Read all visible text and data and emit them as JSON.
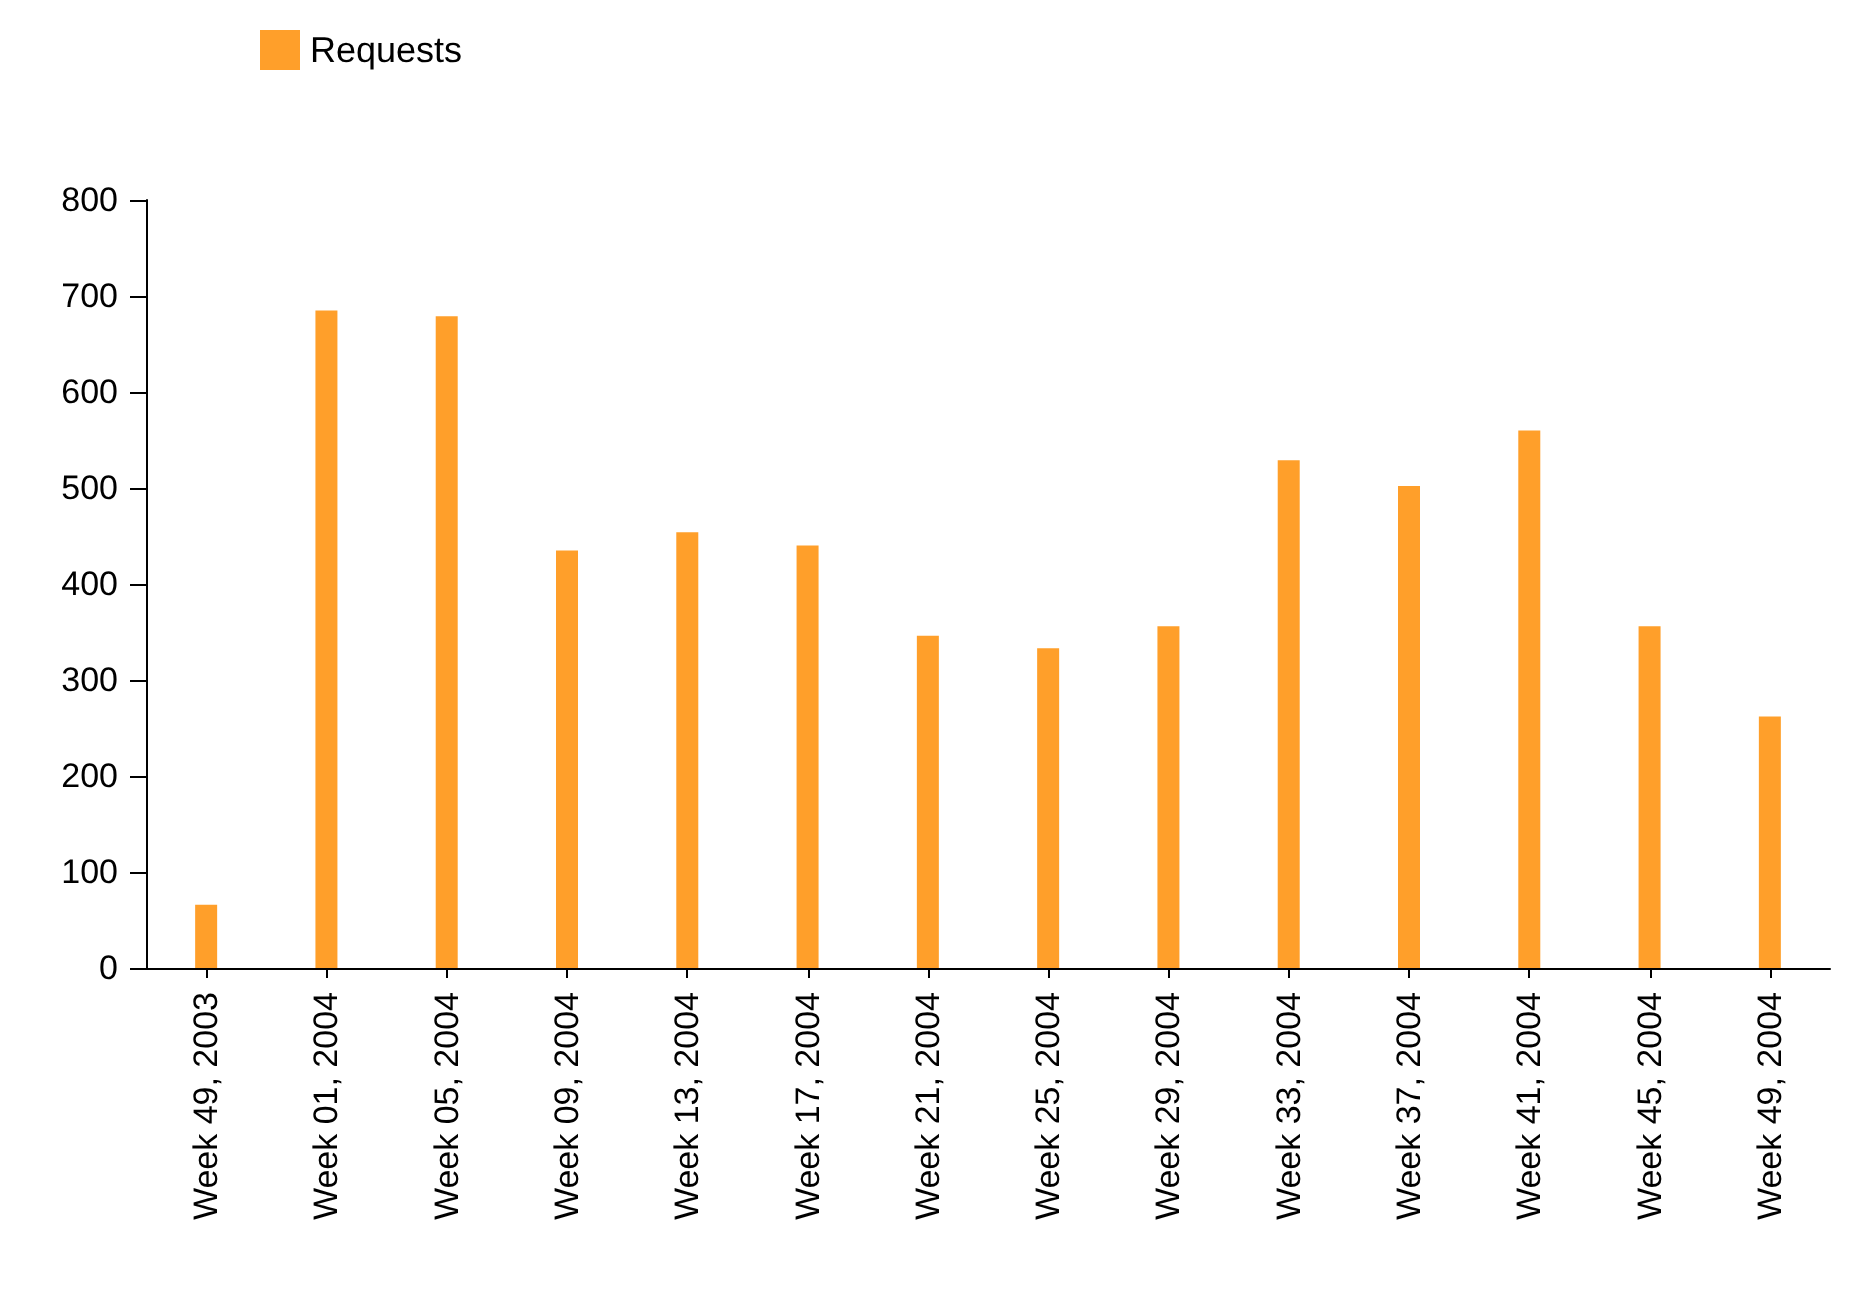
{
  "chart_data": {
    "type": "bar",
    "categories": [
      "Week 49, 2003",
      "Week 01, 2004",
      "Week 05, 2004",
      "Week 09, 2004",
      "Week 13, 2004",
      "Week 17, 2004",
      "Week 21, 2004",
      "Week 25, 2004",
      "Week 29, 2004",
      "Week 33, 2004",
      "Week 37, 2004",
      "Week 41, 2004",
      "Week 45, 2004",
      "Week 49, 2004"
    ],
    "series": [
      {
        "name": "Requests",
        "color": "#ff9f2a",
        "values": [
          66,
          685,
          679,
          435,
          454,
          440,
          346,
          333,
          356,
          529,
          502,
          560,
          356,
          262
        ]
      }
    ],
    "ylim": [
      0,
      800
    ],
    "yticks": [
      0,
      100,
      200,
      300,
      400,
      500,
      600,
      700,
      800
    ],
    "grid": false,
    "legend": "top left"
  }
}
